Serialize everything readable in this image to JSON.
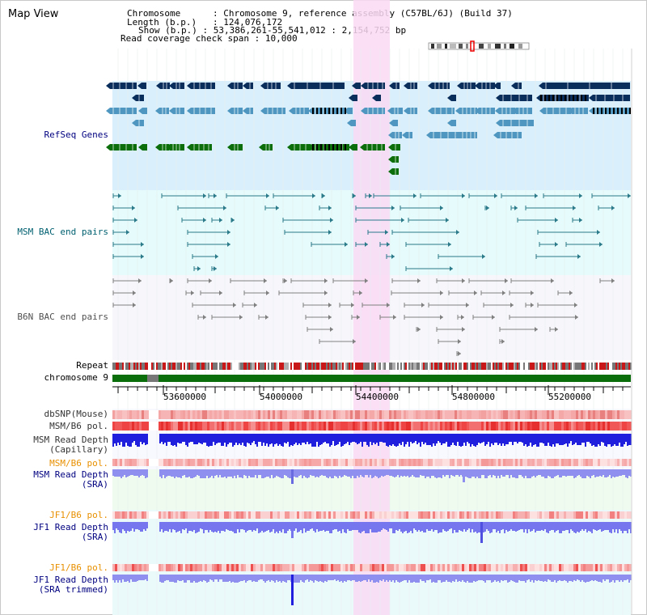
{
  "view_title": "Map View",
  "header": {
    "rows": [
      {
        "key": "Chromosome",
        "value": "Chromosome 9, reference assembly (C57BL/6J) (Build 37)"
      },
      {
        "key": "Length (b.p.)",
        "value": "124,076,172"
      },
      {
        "key": "Show (b.p.)",
        "value": "53,386,261-55,541,012 : 2,154,752 bp"
      },
      {
        "key": "Read coverage check span",
        "value": "10,000"
      }
    ]
  },
  "tracks": {
    "refseq": "RefSeq Genes",
    "msm_bac": "MSM BAC end pairs",
    "b6n_bac": "B6N BAC end pairs",
    "repeat": "Repeat",
    "chromosome": "chromosome 9",
    "dbsnp": "dbSNP(Mouse)",
    "msm_pol": "MSM/B6 pol.",
    "msm_depth_cap_1": "MSM Read Depth",
    "msm_depth_cap_2": "(Capillary)",
    "msm_pol_2": "MSM/B6 pol.",
    "msm_depth_sra_1": "MSM Read Depth",
    "msm_depth_sra_2": "(SRA)",
    "jf1_pol_1": "JF1/B6 pol.",
    "jf1_depth_sra_1": "JF1 Read Depth",
    "jf1_depth_sra_2": "(SRA)",
    "jf1_pol_2": "JF1/B6 pol.",
    "jf1_depth_trim_1": "JF1 Read Depth",
    "jf1_depth_trim_2": "(SRA trimmed)"
  },
  "axis": {
    "ticks": [
      "53600000",
      "54000000",
      "54400000",
      "54800000",
      "55200000"
    ]
  },
  "colors": {
    "refseq_bg": "#d9effb",
    "msm_bg": "#e6fbfb",
    "b6n_bg": "#f7f7fb",
    "highlight": "#f9d9f3",
    "gene_navy": "#0a2e5c",
    "gene_blue": "#4f97c0",
    "gene_green": "#0b6e0b",
    "msm_line": "#2a7a8a",
    "b6n_line": "#808080",
    "snp_pink": "#f6b4b4",
    "pol_red": "#ee4444",
    "depth_blue": "#1f1fdd",
    "depth_lilac": "#8f8ff0",
    "label_navy": "#000080",
    "label_teal": "#006070",
    "label_orange": "#e89000"
  }
}
